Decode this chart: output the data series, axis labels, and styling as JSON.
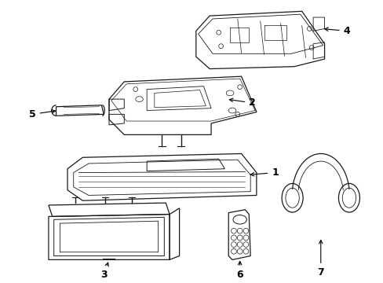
{
  "background_color": "#ffffff",
  "line_color": "#1a1a1a",
  "lw": 0.9,
  "fig_width": 4.89,
  "fig_height": 3.6,
  "dpi": 100,
  "label_fontsize": 9
}
